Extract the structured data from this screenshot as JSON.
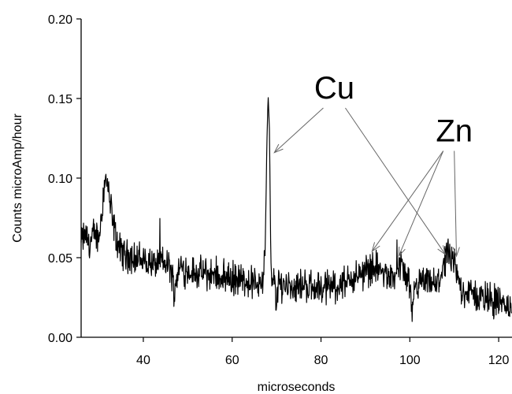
{
  "chart_data": {
    "type": "line",
    "title": "",
    "xlabel": "microseconds",
    "ylabel": "Counts microAmp/hour",
    "xlim": [
      26,
      123
    ],
    "ylim": [
      0,
      0.2
    ],
    "x_ticks": [
      40,
      60,
      80,
      100,
      120
    ],
    "x_tick_labels": [
      "40",
      "60",
      "80",
      "100",
      "120"
    ],
    "y_ticks": [
      0,
      0.05,
      0.1,
      0.15,
      0.2
    ],
    "y_tick_labels": [
      "0.00",
      "0.05",
      "0.10",
      "0.15",
      "0.20"
    ],
    "grid": false,
    "line_color": "#000000",
    "series": [
      {
        "x": [
          26,
          27,
          28,
          29,
          30,
          31,
          31.5,
          32,
          33,
          34,
          35,
          36,
          38,
          40,
          42,
          44,
          46,
          47,
          48,
          50,
          52,
          54,
          56,
          58,
          60,
          62,
          64,
          66,
          67,
          67.5,
          67.8,
          68.1,
          68.4,
          68.7,
          69,
          69.5,
          70,
          70.5,
          72,
          74,
          76,
          78,
          80,
          82,
          84,
          86,
          88,
          90,
          92,
          94,
          96,
          97,
          98,
          99,
          100,
          100.5,
          101,
          102,
          104,
          106,
          107,
          108,
          108.5,
          109,
          110,
          111,
          112,
          114,
          116,
          118,
          120,
          121,
          122,
          123
        ],
        "y": [
          0.06,
          0.065,
          0.058,
          0.066,
          0.062,
          0.09,
          0.1,
          0.095,
          0.075,
          0.06,
          0.054,
          0.052,
          0.05,
          0.048,
          0.046,
          0.047,
          0.045,
          0.03,
          0.044,
          0.042,
          0.04,
          0.04,
          0.039,
          0.038,
          0.037,
          0.036,
          0.035,
          0.034,
          0.034,
          0.06,
          0.12,
          0.152,
          0.13,
          0.05,
          0.03,
          0.038,
          0.02,
          0.034,
          0.033,
          0.032,
          0.033,
          0.032,
          0.031,
          0.032,
          0.033,
          0.035,
          0.038,
          0.042,
          0.045,
          0.04,
          0.036,
          0.04,
          0.048,
          0.036,
          0.03,
          0.008,
          0.03,
          0.033,
          0.034,
          0.032,
          0.04,
          0.048,
          0.05,
          0.052,
          0.045,
          0.035,
          0.03,
          0.027,
          0.025,
          0.024,
          0.022,
          0.021,
          0.02,
          0.019
        ],
        "noise_amplitude": 0.009
      }
    ],
    "annotations": [
      {
        "text": "Cu",
        "anchor": [
          83,
          0.15
        ],
        "targets": [
          [
            69.5,
            0.116
          ],
          [
            108,
            0.052
          ]
        ]
      },
      {
        "text": "Zn",
        "anchor": [
          110,
          0.123
        ],
        "targets": [
          [
            91.5,
            0.054
          ],
          [
            97.5,
            0.051
          ],
          [
            110.5,
            0.051
          ]
        ]
      }
    ]
  }
}
